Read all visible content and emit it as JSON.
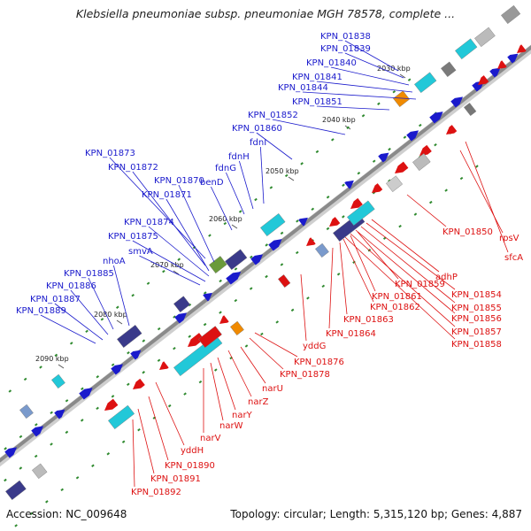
{
  "title": "Klebsiella pneumoniae subsp. pneumoniae MGH 78578, complete ...",
  "footer": {
    "accession": "Accession: NC_009648",
    "summary": "Topology: circular; Length: 5,315,120 bp; Genes: 4,887"
  },
  "ticks": [
    "2030 kbp",
    "2040 kbp",
    "2050 kbp",
    "2060 kbp",
    "2070 kbp",
    "2080 kbp",
    "2090 kbp"
  ],
  "colors": {
    "forward": "#1a1acc",
    "reverse": "#dd1111",
    "backbone": "#888888",
    "cyan": "#22c8d8",
    "orange": "#f08a00",
    "navy": "#3a3a8a"
  },
  "forward_labels": [
    "KPN_01838",
    "KPN_01839",
    "KPN_01840",
    "KPN_01841",
    "KPN_01844",
    "KPN_01851",
    "KPN_01852",
    "KPN_01860",
    "fdnI",
    "fdnH",
    "fdnG",
    "benD",
    "KPN_01873",
    "KPN_01872",
    "KPN_01870",
    "KPN_01871",
    "KPN_01874",
    "KPN_01875",
    "smvA",
    "nhoA",
    "KPN_01885",
    "KPN_01886",
    "KPN_01887",
    "KPN_01889"
  ],
  "reverse_labels": [
    "rpsV",
    "sfcA",
    "KPN_01850",
    "adhP",
    "KPN_01854",
    "KPN_01855",
    "KPN_01856",
    "KPN_01857",
    "KPN_01858",
    "KPN_01859",
    "KPN_01861",
    "KPN_01862",
    "KPN_01863",
    "KPN_01864",
    "yddG",
    "KPN_01876",
    "KPN_01878",
    "narU",
    "narZ",
    "narY",
    "narW",
    "narV",
    "yddH",
    "KPN_01890",
    "KPN_01891",
    "KPN_01892"
  ]
}
